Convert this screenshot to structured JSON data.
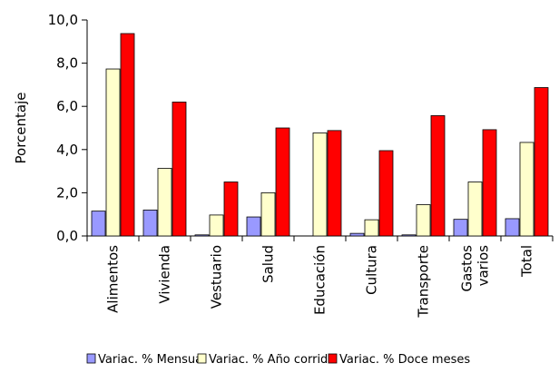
{
  "chart_data": {
    "type": "bar",
    "title": "",
    "xlabel": "",
    "ylabel": "Porcentaje",
    "ylim": [
      0,
      10
    ],
    "yticks": [
      "0,0",
      "2,0",
      "4,0",
      "6,0",
      "8,0",
      "10,0"
    ],
    "ytick_values": [
      0,
      2,
      4,
      6,
      8,
      10
    ],
    "categories": [
      [
        "Alimentos"
      ],
      [
        "Vivienda"
      ],
      [
        "Vestuario"
      ],
      [
        "Salud"
      ],
      [
        "Educación"
      ],
      [
        "Cultura"
      ],
      [
        "Transporte"
      ],
      [
        "Gastos",
        "varios"
      ],
      [
        "Total"
      ]
    ],
    "series": [
      {
        "name": "Variac. % Mensual",
        "color": "#9999ff",
        "values": [
          1.15,
          1.2,
          0.05,
          0.88,
          0.0,
          0.12,
          0.05,
          0.77,
          0.8
        ]
      },
      {
        "name": "Variac. % Año corrido",
        "color": "#ffffcc",
        "values": [
          7.73,
          3.13,
          0.97,
          2.0,
          4.77,
          0.75,
          1.45,
          2.5,
          4.33
        ]
      },
      {
        "name": "Variac. % Doce meses",
        "color": "#ff0000",
        "values": [
          9.37,
          6.2,
          2.5,
          5.0,
          4.88,
          3.95,
          5.57,
          4.92,
          6.87
        ]
      }
    ],
    "grid": false,
    "legend_position": "bottom"
  }
}
